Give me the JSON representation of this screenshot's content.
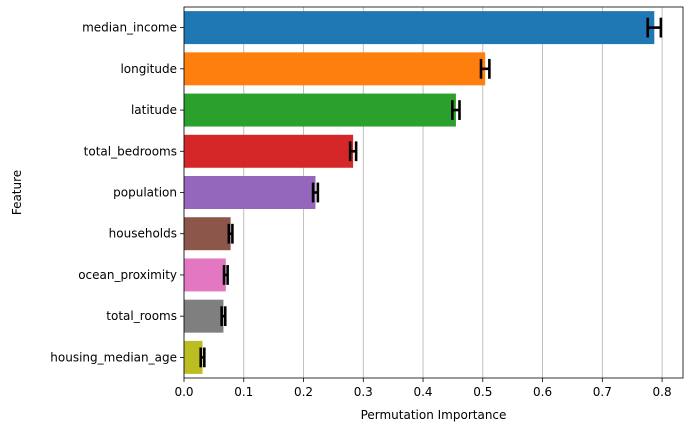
{
  "chart_data": {
    "type": "bar",
    "orientation": "horizontal",
    "categories": [
      "median_income",
      "longitude",
      "latitude",
      "total_bedrooms",
      "population",
      "households",
      "ocean_proximity",
      "total_rooms",
      "housing_median_age"
    ],
    "values": [
      0.787,
      0.504,
      0.455,
      0.283,
      0.22,
      0.078,
      0.07,
      0.066,
      0.031
    ],
    "errors": [
      0.011,
      0.007,
      0.006,
      0.005,
      0.004,
      0.003,
      0.003,
      0.003,
      0.003
    ],
    "colors": [
      "#1f77b4",
      "#ff7f0e",
      "#2ca02c",
      "#d62728",
      "#9467bd",
      "#8c564b",
      "#e377c2",
      "#7f7f7f",
      "#bcbd22"
    ],
    "xlabel": "Permutation Importance",
    "ylabel": "Feature",
    "xlim": [
      0,
      0.835
    ],
    "xticks": [
      "0.0",
      "0.1",
      "0.2",
      "0.3",
      "0.4",
      "0.5",
      "0.6",
      "0.7",
      "0.8"
    ],
    "grid": "x"
  }
}
